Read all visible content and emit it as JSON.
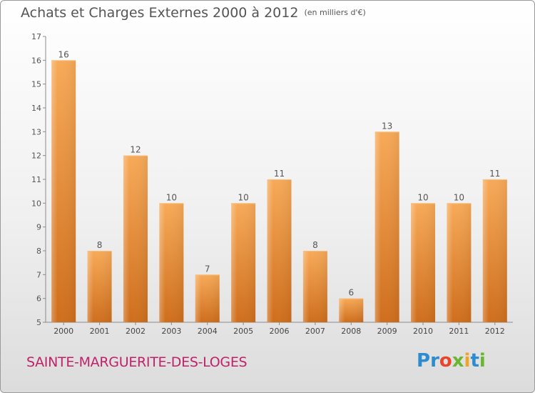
{
  "header": {
    "title": "Achats et Charges Externes 2000 à 2012",
    "unit": "(en milliers d'€)"
  },
  "footer": {
    "commune": "SAINTE-MARGUERITE-DES-LOGES",
    "logo_letters": [
      "P",
      "r",
      "o",
      "x",
      "i",
      "t",
      "i"
    ],
    "logo_colors": [
      "#2d8bd0",
      "#2d8bd0",
      "#e8452a",
      "#69b631",
      "#f2a325",
      "#2d8bd0",
      "#69b631"
    ]
  },
  "chart_data": {
    "type": "bar",
    "title": "Achats et Charges Externes 2000 à 2012",
    "subtitle": "(en milliers d'€)",
    "xlabel": "",
    "ylabel": "",
    "categories": [
      "2000",
      "2001",
      "2002",
      "2003",
      "2004",
      "2005",
      "2006",
      "2007",
      "2008",
      "2009",
      "2010",
      "2011",
      "2012"
    ],
    "values": [
      16,
      8,
      12,
      10,
      7,
      10,
      11,
      8,
      6,
      13,
      10,
      10,
      11
    ],
    "ylim": [
      5,
      17
    ],
    "yticks": [
      5,
      6,
      7,
      8,
      9,
      10,
      11,
      12,
      13,
      14,
      15,
      16,
      17
    ],
    "bar_color": "#f5a04c",
    "bar_color_dark": "#d2711c",
    "grid": false
  }
}
